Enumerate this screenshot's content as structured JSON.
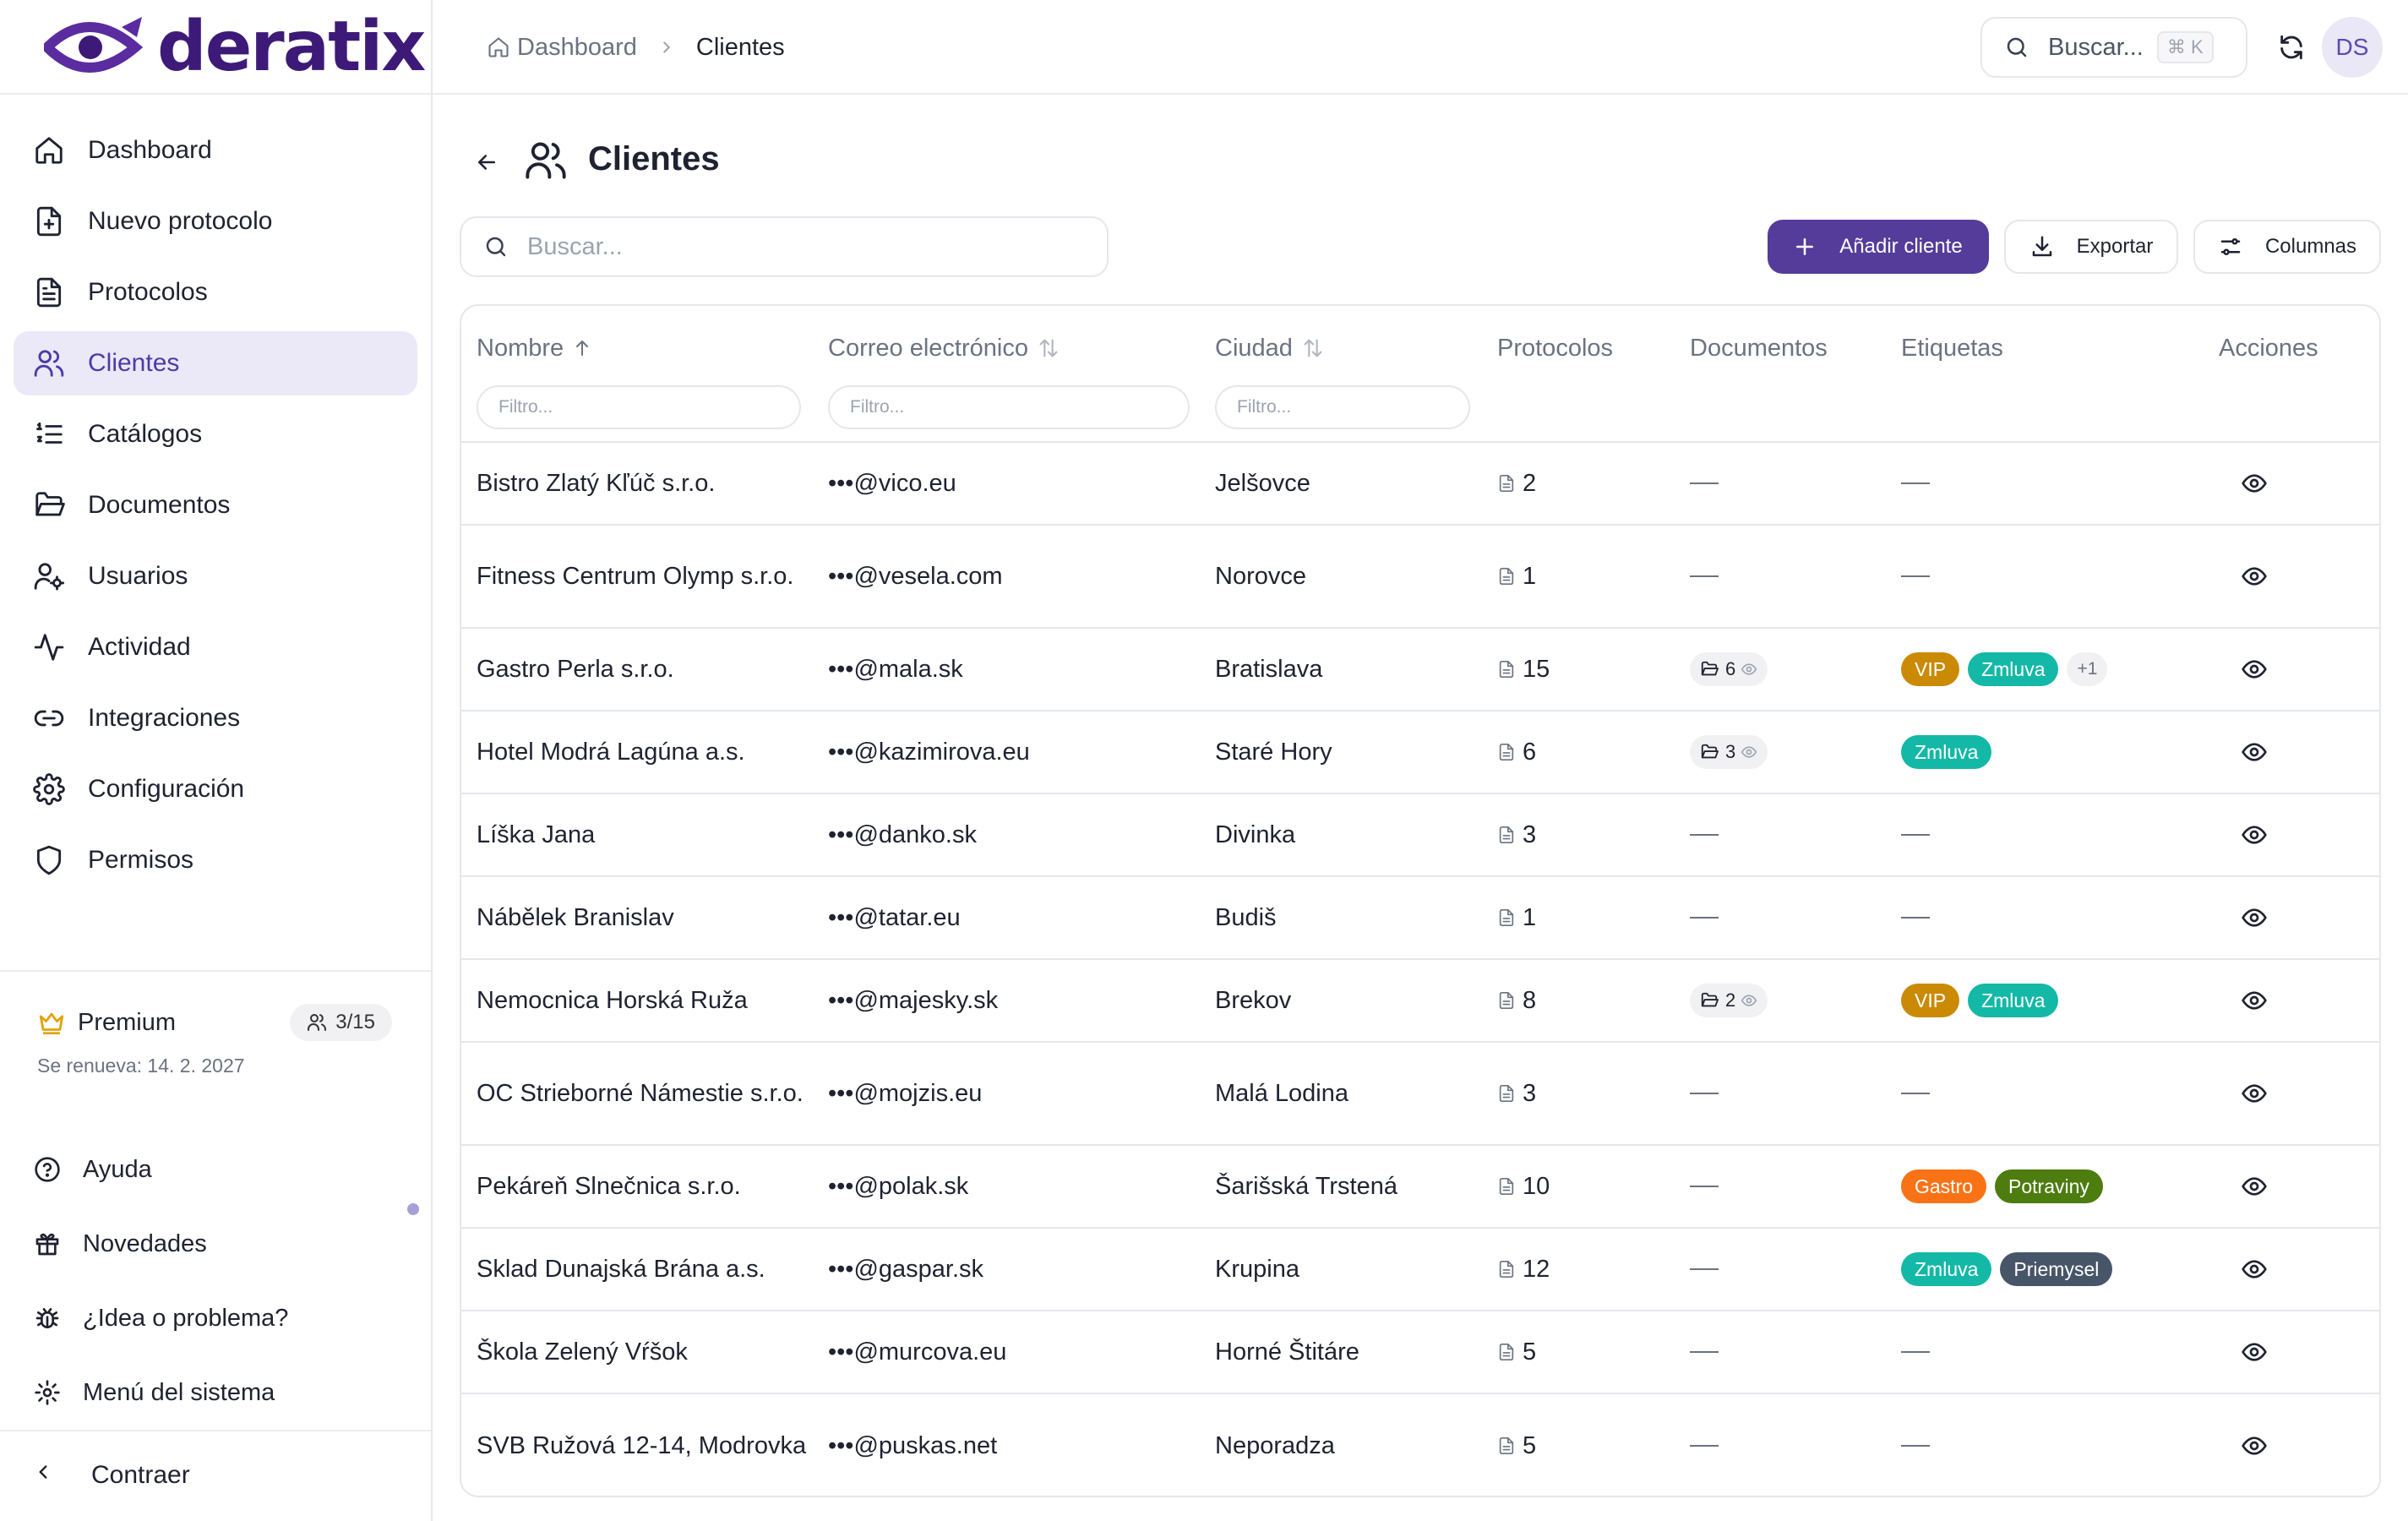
{
  "brand": {
    "name": "deratix",
    "color": "#3d1a78"
  },
  "sidebar": {
    "items": [
      {
        "label": "Dashboard",
        "icon": "home-icon"
      },
      {
        "label": "Nuevo protocolo",
        "icon": "file-plus-icon"
      },
      {
        "label": "Protocolos",
        "icon": "file-text-icon"
      },
      {
        "label": "Clientes",
        "icon": "users-icon",
        "active": true
      },
      {
        "label": "Catálogos",
        "icon": "list-ordered-icon"
      },
      {
        "label": "Documentos",
        "icon": "folder-open-icon"
      },
      {
        "label": "Usuarios",
        "icon": "user-cog-icon"
      },
      {
        "label": "Actividad",
        "icon": "activity-icon"
      },
      {
        "label": "Integraciones",
        "icon": "link-icon"
      },
      {
        "label": "Configuración",
        "icon": "settings-icon"
      },
      {
        "label": "Permisos",
        "icon": "shield-icon"
      }
    ],
    "premium": {
      "label": "Premium",
      "seats": "3/15",
      "renewal": "Se renueva: 14. 2. 2027"
    },
    "bottom": [
      {
        "label": "Ayuda",
        "icon": "help-circle-icon"
      },
      {
        "label": "Novedades",
        "icon": "gift-icon"
      },
      {
        "label": "¿Idea o problema?",
        "icon": "bug-icon"
      },
      {
        "label": "Menú del sistema",
        "icon": "gear-icon"
      }
    ],
    "collapse": "Contraer"
  },
  "header": {
    "breadcrumb": {
      "home": "Dashboard",
      "current": "Clientes"
    },
    "search_placeholder": "Buscar...",
    "shortcut": "⌘ K",
    "avatar": "DS"
  },
  "page": {
    "title": "Clientes",
    "search_placeholder": "Buscar...",
    "add_button": "Añadir cliente",
    "export_button": "Exportar",
    "columns_button": "Columnas",
    "accent": "#553c9a"
  },
  "table": {
    "columns": {
      "name": "Nombre",
      "email": "Correo electrónico",
      "city": "Ciudad",
      "protocols": "Protocolos",
      "documents": "Documentos",
      "tags": "Etiquetas",
      "actions": "Acciones"
    },
    "filter_placeholder": "Filtro...",
    "rows": [
      {
        "name": "Bistro Zlatý Kľúč s.r.o.",
        "email": "•••@vico.eu",
        "city": "Jelšovce",
        "protocols": "2",
        "documents": null,
        "tags": [],
        "more": null
      },
      {
        "name": "Fitness Centrum Olymp s.r.o.",
        "email": "•••@vesela.com",
        "city": "Norovce",
        "protocols": "1",
        "documents": null,
        "tags": [],
        "more": null
      },
      {
        "name": "Gastro Perla s.r.o.",
        "email": "•••@mala.sk",
        "city": "Bratislava",
        "protocols": "15",
        "documents": "6",
        "tags": [
          "VIP",
          "Zmluva"
        ],
        "more": "+1"
      },
      {
        "name": "Hotel Modrá Lagúna a.s.",
        "email": "•••@kazimirova.eu",
        "city": "Staré Hory",
        "protocols": "6",
        "documents": "3",
        "tags": [
          "Zmluva"
        ],
        "more": null
      },
      {
        "name": "Líška Jana",
        "email": "•••@danko.sk",
        "city": "Divinka",
        "protocols": "3",
        "documents": null,
        "tags": [],
        "more": null
      },
      {
        "name": "Nábělek Branislav",
        "email": "•••@tatar.eu",
        "city": "Budiš",
        "protocols": "1",
        "documents": null,
        "tags": [],
        "more": null
      },
      {
        "name": "Nemocnica Horská Ruža",
        "email": "•••@majesky.sk",
        "city": "Brekov",
        "protocols": "8",
        "documents": "2",
        "tags": [
          "VIP",
          "Zmluva"
        ],
        "more": null
      },
      {
        "name": "OC Strieborné Námestie s.r.o.",
        "email": "•••@mojzis.eu",
        "city": "Malá Lodina",
        "protocols": "3",
        "documents": null,
        "tags": [],
        "more": null
      },
      {
        "name": "Pekáreň Slnečnica s.r.o.",
        "email": "•••@polak.sk",
        "city": "Šarišská Trstená",
        "protocols": "10",
        "documents": null,
        "tags": [
          "Gastro",
          "Potraviny"
        ],
        "more": null
      },
      {
        "name": "Sklad Dunajská Brána a.s.",
        "email": "•••@gaspar.sk",
        "city": "Krupina",
        "protocols": "12",
        "documents": null,
        "tags": [
          "Zmluva",
          "Priemysel"
        ],
        "more": null
      },
      {
        "name": "Škola Zelený Vŕšok",
        "email": "•••@murcova.eu",
        "city": "Horné Štitáre",
        "protocols": "5",
        "documents": null,
        "tags": [],
        "more": null
      },
      {
        "name": "SVB Ružová 12-14, Modrovka",
        "email": "•••@puskas.net",
        "city": "Neporadza",
        "protocols": "5",
        "documents": null,
        "tags": [],
        "more": null
      }
    ],
    "tag_colors": {
      "VIP": "#ca8a04",
      "Zmluva": "#14b8a6",
      "Gastro": "#f97316",
      "Potraviny": "#4d7c0f",
      "Priemysel": "#475569"
    }
  }
}
